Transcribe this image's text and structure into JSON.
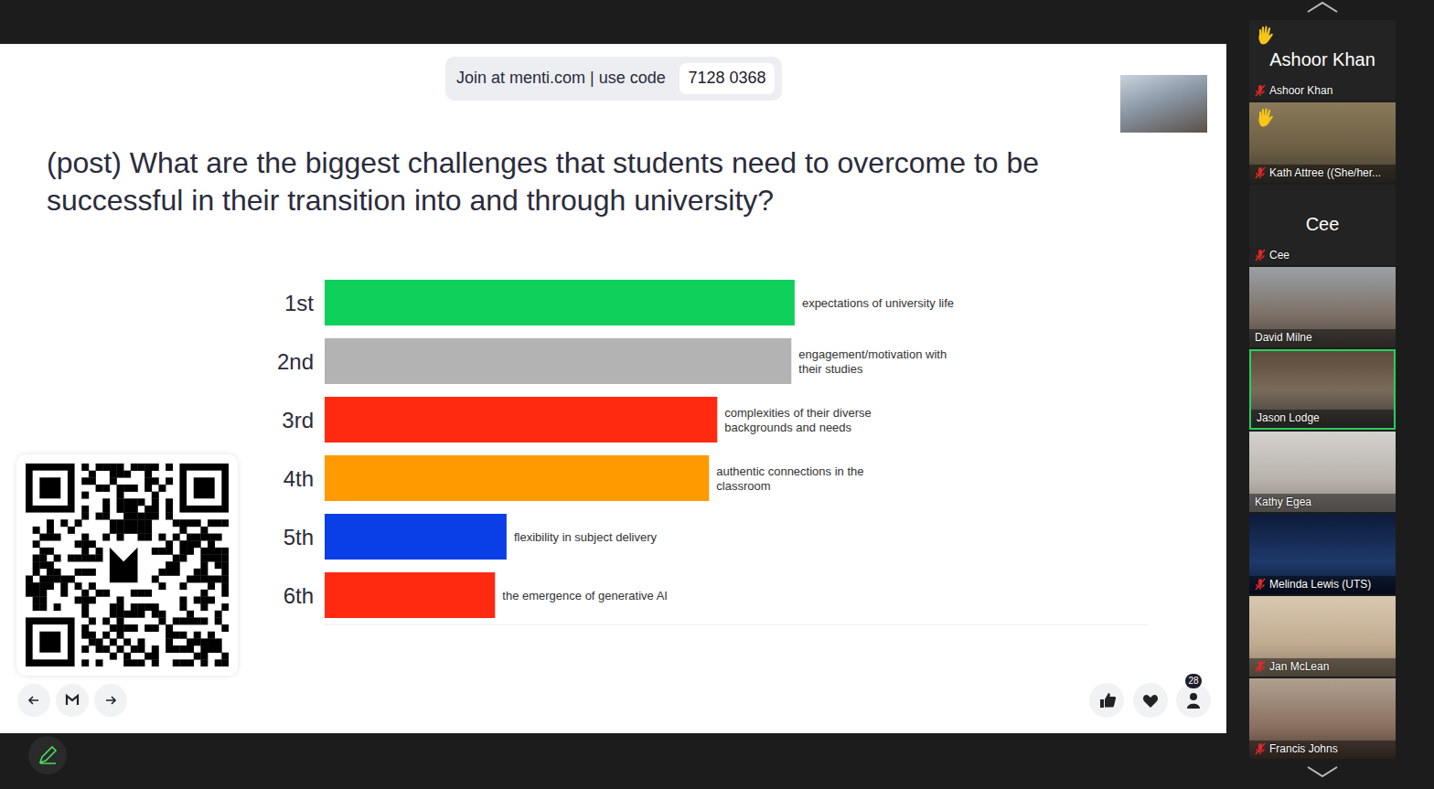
{
  "chart_data": {
    "type": "bar",
    "orientation": "horizontal",
    "title": "(post) What are the biggest challenges that students need to overcome to be successful in their transition into and through university?",
    "categories": [
      "1st",
      "2nd",
      "3rd",
      "4th",
      "5th",
      "6th"
    ],
    "values": [
      57.1,
      56.7,
      47.7,
      46.7,
      22.1,
      20.7
    ],
    "answers": [
      "expectations of university life",
      "engagement/motivation with their studies",
      "complexities of their diverse backgrounds and needs",
      "authentic connections in the classroom",
      "flexibility in subject delivery",
      "the emergence of generative AI"
    ],
    "colors": [
      "#0fd05b",
      "#b3b3b3",
      "#ff2a0f",
      "#ff9a00",
      "#0a3ee6",
      "#ff2a0f"
    ],
    "xlim": [
      0,
      100
    ],
    "grid": false,
    "tick_labels": "y"
  },
  "slide": {
    "join_text": "Join at menti.com | use code",
    "code": "7128 0368",
    "participants_count": 28
  },
  "participants": [
    {
      "name": "Ashoor Khan",
      "video": false,
      "muted": true,
      "hand_raised": true,
      "active": false
    },
    {
      "name": "Kath Attree ((She/her...",
      "video": true,
      "muted": true,
      "hand_raised": true,
      "active": false
    },
    {
      "name": "Cee",
      "video": false,
      "muted": true,
      "hand_raised": false,
      "active": false
    },
    {
      "name": "David Milne",
      "video": true,
      "muted": false,
      "hand_raised": false,
      "active": false
    },
    {
      "name": "Jason Lodge",
      "video": true,
      "muted": false,
      "hand_raised": false,
      "active": true
    },
    {
      "name": "Kathy Egea",
      "video": true,
      "muted": false,
      "hand_raised": false,
      "active": false
    },
    {
      "name": "Melinda Lewis (UTS)",
      "video": true,
      "muted": true,
      "hand_raised": false,
      "active": false
    },
    {
      "name": "Jan McLean",
      "video": true,
      "muted": true,
      "hand_raised": false,
      "active": false
    },
    {
      "name": "Francis Johns",
      "video": true,
      "muted": true,
      "hand_raised": false,
      "active": false
    }
  ]
}
